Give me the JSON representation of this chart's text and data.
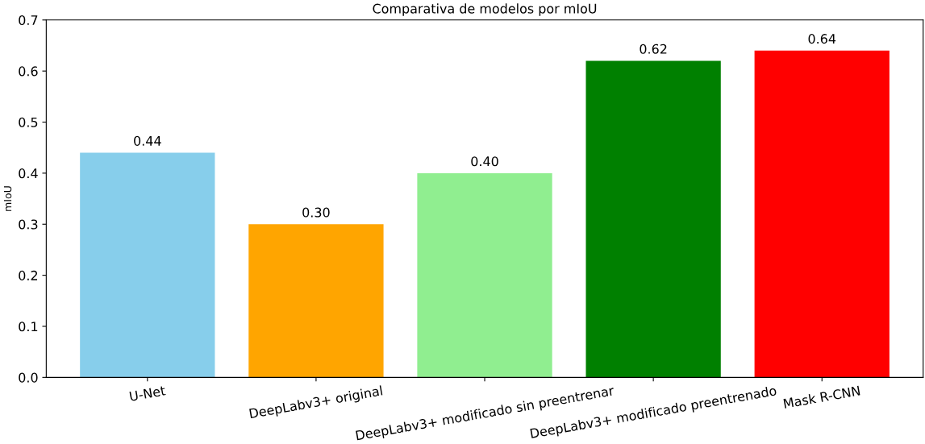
{
  "chart_data": {
    "type": "bar",
    "title": "Comparativa de modelos por mIoU",
    "ylabel": "mIoU",
    "categories": [
      "U-Net",
      "DeepLabv3+ original",
      "DeepLabv3+ modificado sin preentrenar",
      "DeepLabv3+ modificado preentrenado",
      "Mask R-CNN"
    ],
    "values": [
      0.44,
      0.3,
      0.4,
      0.62,
      0.64
    ],
    "value_labels": [
      "0.44",
      "0.30",
      "0.40",
      "0.62",
      "0.64"
    ],
    "colors": [
      "#87ceeb",
      "#ffa500",
      "#90ee90",
      "#008000",
      "#ff0000"
    ],
    "ylim": [
      0,
      0.7
    ],
    "yticks": [
      {
        "value": 0,
        "label": "0.0"
      },
      0.1,
      0.2,
      0.3,
      0.4,
      0.5,
      0.6,
      0.7
    ]
  }
}
